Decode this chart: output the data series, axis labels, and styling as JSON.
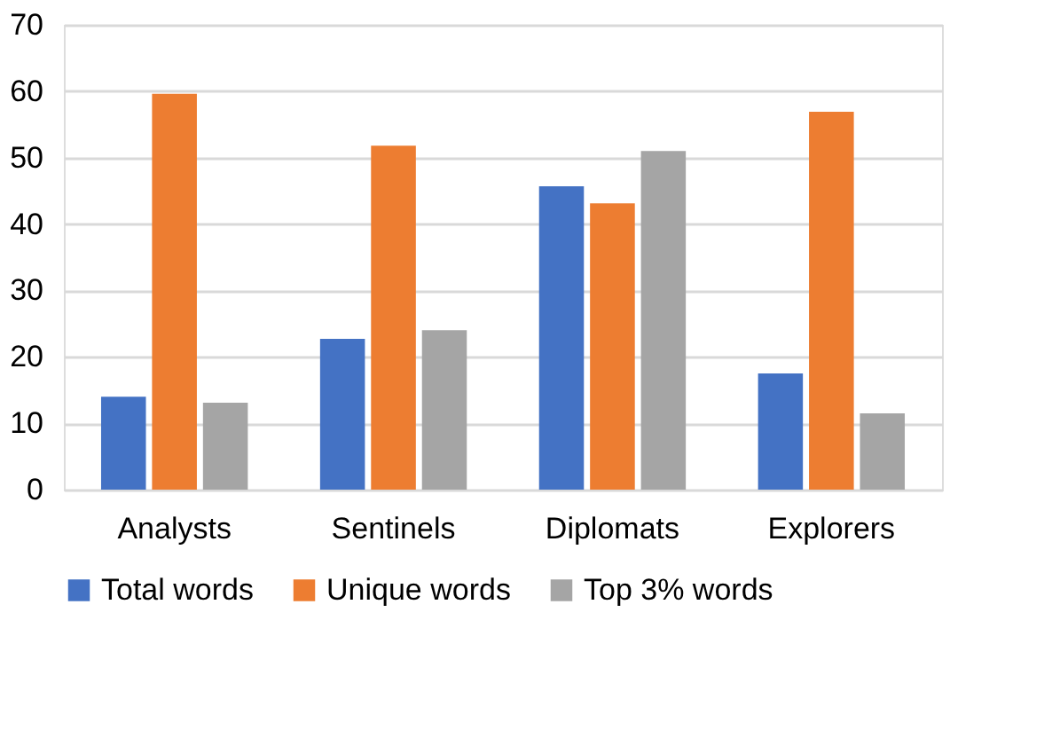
{
  "chart_data": {
    "type": "bar",
    "categories": [
      "Analysts",
      "Sentinels",
      "Diplomats",
      "Explorers"
    ],
    "series": [
      {
        "name": "Total words",
        "color": "#4472c4",
        "values": [
          14.0,
          22.7,
          45.7,
          17.5
        ]
      },
      {
        "name": "Unique words",
        "color": "#ed7d31",
        "values": [
          59.6,
          51.8,
          43.1,
          56.9
        ]
      },
      {
        "name": "Top 3% words",
        "color": "#a5a5a5",
        "values": [
          13.1,
          24.0,
          51.0,
          11.5
        ]
      }
    ],
    "ylim": [
      0,
      70
    ],
    "yticks": [
      0,
      10,
      20,
      30,
      40,
      50,
      60,
      70
    ],
    "grid": "y",
    "legend": "bottom"
  }
}
